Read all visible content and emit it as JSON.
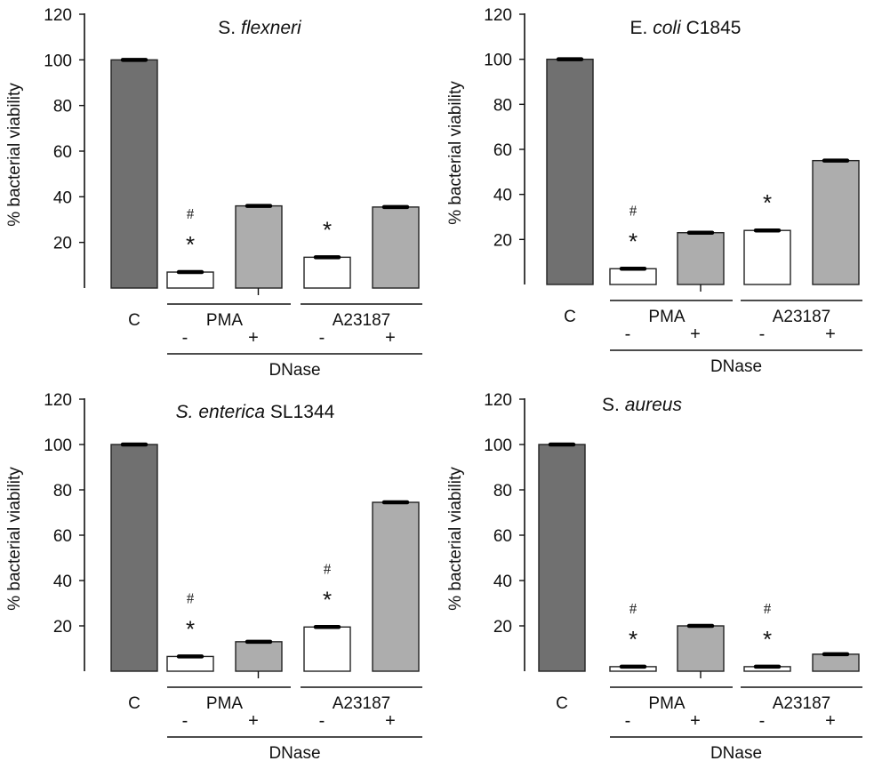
{
  "chart_data": [
    {
      "type": "bar",
      "title_italic": "S.",
      "title_rest": "flexneri",
      "title_order": "normal-first",
      "ylabel": "% bacterial viability",
      "ylim": [
        0,
        120
      ],
      "yticks": [
        20,
        40,
        60,
        80,
        100,
        120
      ],
      "categories": [
        "C",
        "PMA -",
        "PMA +",
        "A23187 -",
        "A23187 +"
      ],
      "values": [
        100,
        7,
        36,
        13.5,
        35.5
      ],
      "fills": [
        "#707070",
        "#ffffff",
        "#adadad",
        "#ffffff",
        "#adadad"
      ],
      "stars": [
        false,
        true,
        false,
        true,
        false
      ],
      "hashes": [
        false,
        true,
        false,
        false,
        false
      ]
    },
    {
      "type": "bar",
      "title_italic": "coli",
      "title_rest": "E.",
      "title_suffix": "C1845",
      "ylabel": "% bacterial viability",
      "ylim": [
        0,
        120
      ],
      "yticks": [
        20,
        40,
        60,
        80,
        100,
        120
      ],
      "categories": [
        "C",
        "PMA -",
        "PMA +",
        "A23187 -",
        "A23187 +"
      ],
      "values": [
        100,
        7,
        23,
        24,
        55
      ],
      "fills": [
        "#707070",
        "#ffffff",
        "#adadad",
        "#ffffff",
        "#adadad"
      ],
      "stars": [
        false,
        true,
        false,
        true,
        false
      ],
      "hashes": [
        false,
        true,
        false,
        false,
        false
      ]
    },
    {
      "type": "bar",
      "title_italic": "S. enterica",
      "title_suffix": "SL1344",
      "ylabel": "% bacterial viability",
      "ylim": [
        0,
        120
      ],
      "yticks": [
        20,
        40,
        60,
        80,
        100,
        120
      ],
      "categories": [
        "C",
        "PMA -",
        "PMA +",
        "A23187 -",
        "A23187 +"
      ],
      "values": [
        100,
        6.5,
        13,
        19.5,
        74.5
      ],
      "fills": [
        "#707070",
        "#ffffff",
        "#adadad",
        "#ffffff",
        "#adadad"
      ],
      "stars": [
        false,
        true,
        false,
        true,
        false
      ],
      "hashes": [
        false,
        true,
        false,
        true,
        false
      ]
    },
    {
      "type": "bar",
      "title_rest": "S.",
      "title_italic": "aureus",
      "ylabel": "% bacterial viability",
      "ylim": [
        0,
        120
      ],
      "yticks": [
        20,
        40,
        60,
        80,
        100,
        120
      ],
      "categories": [
        "C",
        "PMA -",
        "PMA +",
        "A23187 -",
        "A23187 +"
      ],
      "values": [
        100,
        2,
        20,
        2,
        7.5
      ],
      "fills": [
        "#707070",
        "#ffffff",
        "#adadad",
        "#ffffff",
        "#adadad"
      ],
      "stars": [
        false,
        true,
        false,
        true,
        false
      ],
      "hashes": [
        false,
        true,
        false,
        true,
        false
      ]
    }
  ],
  "labels": {
    "control": "C",
    "group1": "PMA",
    "group2": "A23187",
    "minus": "-",
    "plus": "+",
    "dnase": "DNase",
    "star": "*",
    "hash": "#"
  }
}
